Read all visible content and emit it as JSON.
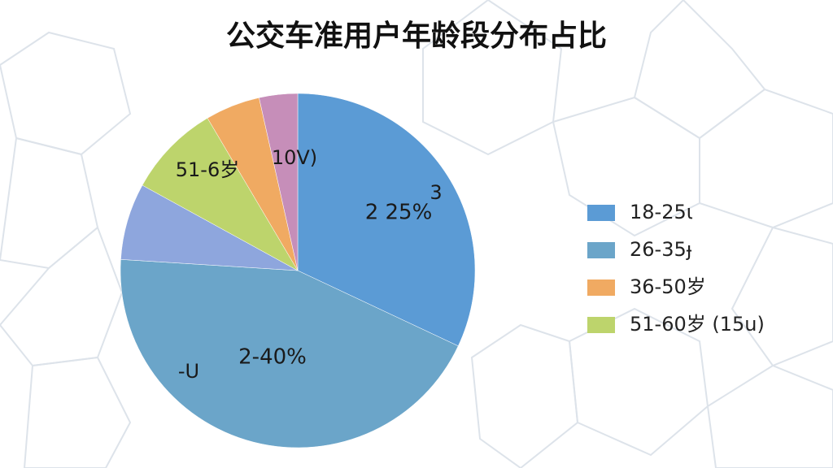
{
  "chart_data": {
    "type": "pie",
    "title": "公交车准用户年龄段分布占比",
    "categories": [
      null,
      null,
      null,
      null,
      null,
      null
    ],
    "values": [
      32,
      44,
      7,
      8.5,
      5,
      3.5
    ],
    "colors": [
      "#5b9bd5",
      "#6ba5c9",
      "#8ea6dd",
      "#bdd46c",
      "#f0aa62",
      "#c68eb9"
    ],
    "legend": [
      {
        "name": "18-25ι",
        "color": "#5b9bd5"
      },
      {
        "name": "26-35ɟ",
        "color": "#6ba5c9"
      },
      {
        "name": "36-50岁",
        "color": "#f0aa62"
      },
      {
        "name": "51-60岁 (15u)",
        "color": "#bdd46c"
      }
    ],
    "legend_position": "right",
    "annotations": [
      "2 25%",
      "2-40%",
      "51-6岁",
      "10V)",
      "3",
      "-U"
    ]
  }
}
